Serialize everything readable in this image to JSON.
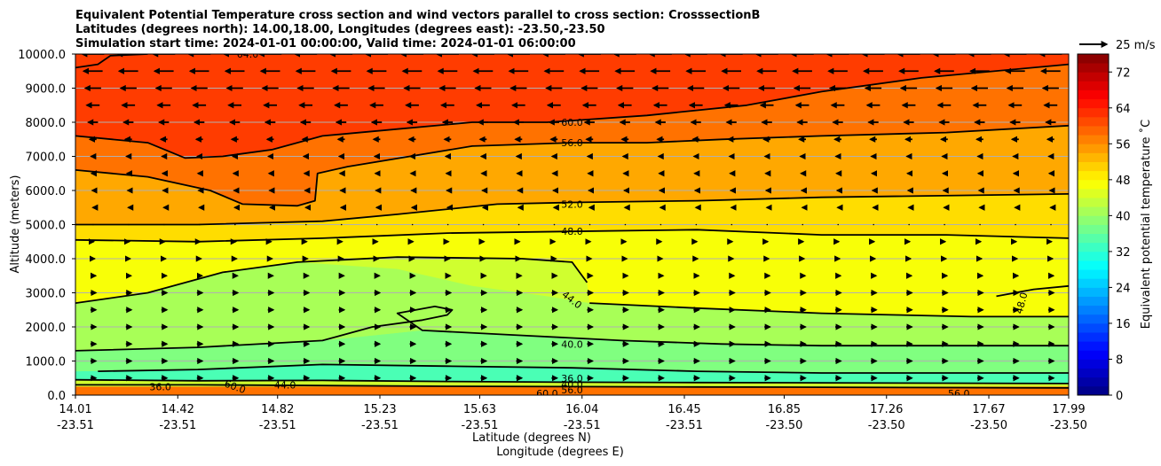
{
  "chart_data": {
    "type": "heatmap",
    "title_lines": [
      "Equivalent Potential Temperature cross section and wind vectors parallel to cross section: CrosssectionB",
      "Latitudes (degrees north): 14.00,18.00, Longitudes (degrees east): -23.50,-23.50",
      "Simulation start time: 2024-01-01 00:00:00, Valid time: 2024-01-01 06:00:00"
    ],
    "ylabel": "Altitude (meters)",
    "xlabel_lat": "Latitude (degrees N)",
    "xlabel_lon": "Longitude (degrees E)",
    "ylim": [
      0,
      10000
    ],
    "y_ticks": [
      "0.0",
      "1000.0",
      "2000.0",
      "3000.0",
      "4000.0",
      "5000.0",
      "6000.0",
      "7000.0",
      "8000.0",
      "9000.0",
      "10000.0"
    ],
    "x_range": [
      14.01,
      17.99
    ],
    "x_ticks": [
      {
        "lat": "14.01",
        "lon": "-23.51"
      },
      {
        "lat": "14.42",
        "lon": "-23.51"
      },
      {
        "lat": "14.82",
        "lon": "-23.51"
      },
      {
        "lat": "15.23",
        "lon": "-23.51"
      },
      {
        "lat": "15.63",
        "lon": "-23.51"
      },
      {
        "lat": "16.04",
        "lon": "-23.51"
      },
      {
        "lat": "16.45",
        "lon": "-23.51"
      },
      {
        "lat": "16.85",
        "lon": "-23.50"
      },
      {
        "lat": "17.26",
        "lon": "-23.50"
      },
      {
        "lat": "17.67",
        "lon": "-23.50"
      },
      {
        "lat": "17.99",
        "lon": "-23.50"
      }
    ],
    "grid": "horizontal",
    "colorbar": {
      "label": "Equivalent potential temperature ˚C",
      "ticks": [
        "0",
        "8",
        "16",
        "24",
        "32",
        "40",
        "48",
        "56",
        "64",
        "72"
      ],
      "range": [
        0,
        76
      ],
      "colormap": "jet"
    },
    "wind_key": {
      "label": "25 m/s",
      "speed": 25
    },
    "contour_labels": [
      "64.0",
      "60.0",
      "56.0",
      "52.0",
      "48.0",
      "44.0",
      "40.0",
      "36.0",
      "48.0",
      "44.0",
      "60.0",
      "36.0",
      "40.0",
      "56.0",
      "60.0",
      "56.0"
    ],
    "contours": [
      {
        "level": 56,
        "points": [
          [
            14.01,
            6600
          ],
          [
            14.3,
            6400
          ],
          [
            14.55,
            6000
          ],
          [
            14.68,
            5600
          ],
          [
            14.9,
            5550
          ],
          [
            14.97,
            5700
          ],
          [
            14.98,
            6500
          ],
          [
            15.1,
            6700
          ],
          [
            15.6,
            7300
          ],
          [
            16.0,
            7400
          ],
          [
            16.3,
            7400
          ],
          [
            16.6,
            7500
          ],
          [
            17.0,
            7600
          ],
          [
            17.5,
            7700
          ],
          [
            17.99,
            7900
          ]
        ]
      },
      {
        "level": 60,
        "points": [
          [
            14.01,
            7600
          ],
          [
            14.3,
            7400
          ],
          [
            14.45,
            6950
          ],
          [
            14.6,
            7000
          ],
          [
            14.8,
            7200
          ],
          [
            15.0,
            7600
          ],
          [
            15.3,
            7800
          ],
          [
            15.6,
            8000
          ],
          [
            15.9,
            8000
          ],
          [
            16.3,
            8200
          ],
          [
            16.7,
            8500
          ],
          [
            17.0,
            8900
          ],
          [
            17.4,
            9300
          ],
          [
            17.99,
            9700
          ]
        ]
      },
      {
        "level": 64,
        "points": [
          [
            14.01,
            9600
          ],
          [
            14.1,
            9700
          ],
          [
            14.15,
            9950
          ],
          [
            14.3,
            10000
          ]
        ]
      },
      {
        "level": 52,
        "points": [
          [
            14.01,
            5000
          ],
          [
            14.5,
            5000
          ],
          [
            15.0,
            5100
          ],
          [
            15.3,
            5300
          ],
          [
            15.7,
            5600
          ],
          [
            16.0,
            5650
          ],
          [
            16.5,
            5700
          ],
          [
            17.0,
            5800
          ],
          [
            17.99,
            5900
          ]
        ]
      },
      {
        "level": 48,
        "points": [
          [
            14.01,
            4550
          ],
          [
            14.5,
            4500
          ],
          [
            15.0,
            4600
          ],
          [
            15.5,
            4750
          ],
          [
            16.0,
            4800
          ],
          [
            16.5,
            4850
          ],
          [
            17.0,
            4700
          ],
          [
            17.5,
            4700
          ],
          [
            17.99,
            4600
          ]
        ]
      },
      {
        "level": 44,
        "points": [
          [
            14.01,
            2700
          ],
          [
            14.3,
            3000
          ],
          [
            14.6,
            3600
          ],
          [
            14.9,
            3900
          ],
          [
            15.3,
            4050
          ],
          [
            15.8,
            4000
          ],
          [
            16.0,
            3900
          ],
          [
            16.06,
            3300
          ]
        ]
      },
      {
        "level": 44,
        "points": [
          [
            16.07,
            2700
          ],
          [
            16.5,
            2550
          ],
          [
            17.0,
            2400
          ],
          [
            17.3,
            2350
          ],
          [
            17.6,
            2300
          ],
          [
            17.99,
            2300
          ]
        ]
      },
      {
        "level": 48,
        "points": [
          [
            17.7,
            2900
          ],
          [
            17.85,
            3100
          ],
          [
            17.99,
            3200
          ]
        ]
      },
      {
        "level": 40,
        "points": [
          [
            14.01,
            1300
          ],
          [
            14.5,
            1400
          ],
          [
            15.0,
            1600
          ],
          [
            15.2,
            2000
          ],
          [
            15.4,
            2200
          ],
          [
            15.5,
            2350
          ],
          [
            15.52,
            2500
          ],
          [
            15.45,
            2600
          ],
          [
            15.3,
            2400
          ],
          [
            15.4,
            1900
          ],
          [
            15.8,
            1750
          ],
          [
            16.2,
            1600
          ],
          [
            16.6,
            1500
          ],
          [
            17.0,
            1450
          ],
          [
            17.5,
            1450
          ],
          [
            17.99,
            1450
          ]
        ]
      },
      {
        "level": 36,
        "points": [
          [
            14.1,
            700
          ],
          [
            14.5,
            750
          ],
          [
            15.0,
            900
          ],
          [
            15.5,
            850
          ],
          [
            16.0,
            800
          ],
          [
            16.5,
            700
          ],
          [
            17.0,
            650
          ],
          [
            17.5,
            650
          ],
          [
            17.99,
            650
          ]
        ]
      },
      {
        "level": 40,
        "points": [
          [
            14.01,
            450
          ],
          [
            14.5,
            420
          ],
          [
            15.0,
            430
          ],
          [
            15.5,
            400
          ],
          [
            16.0,
            380
          ],
          [
            16.5,
            370
          ],
          [
            17.0,
            360
          ],
          [
            17.5,
            350
          ],
          [
            17.99,
            340
          ]
        ]
      },
      {
        "level": 44,
        "points": [
          [
            14.01,
            300
          ],
          [
            14.5,
            300
          ],
          [
            15.0,
            280
          ],
          [
            15.5,
            260
          ],
          [
            16.0,
            250
          ],
          [
            16.5,
            240
          ],
          [
            17.0,
            230
          ],
          [
            17.5,
            220
          ],
          [
            17.99,
            210
          ]
        ]
      }
    ]
  }
}
